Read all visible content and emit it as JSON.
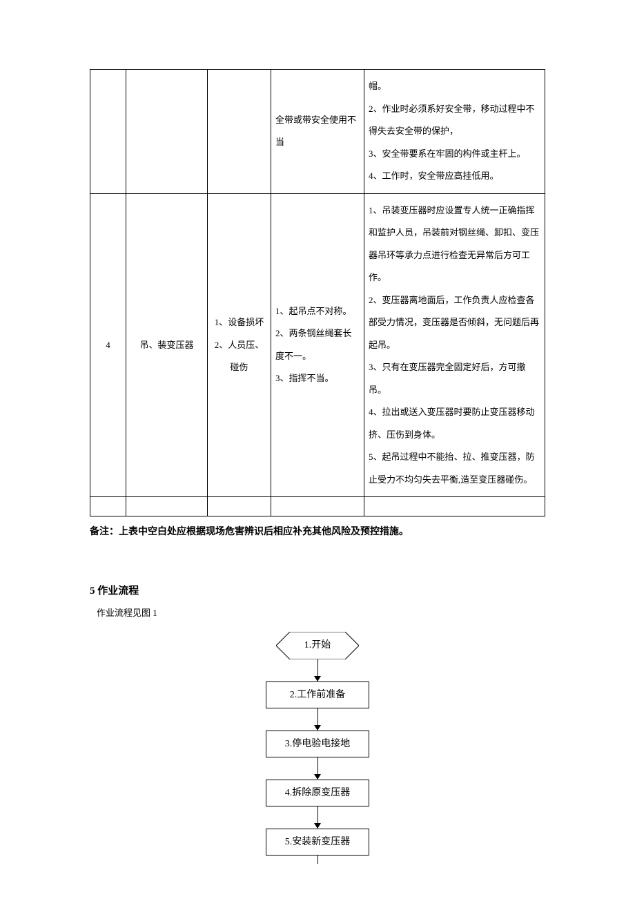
{
  "table": {
    "rows": [
      {
        "seq": "",
        "task": "",
        "risk": "",
        "cause": "全带或带安全使用不当",
        "measure": "帽。\n2、作业时必须系好安全带，移动过程中不得失去安全带的保护，\n3、安全带要系在牢固的构件或主杆上。\n4、工作时，安全带应高挂低用。"
      },
      {
        "seq": "4",
        "task": "吊、装变压器",
        "risk": "1、设备损坏\n2、人员压、碰伤",
        "cause": "1、起吊点不对称。\n2、两条钢丝绳套长度不一。\n3、指挥不当。",
        "measure": "1、吊装变压器时应设置专人统一正确指挥和监护人员，吊装前对钢丝绳、卸扣、变压器吊环等承力点进行检查无异常后方可工作。\n2、变压器离地面后，工作负责人应检查各部受力情况，变压器是否倾斜，无问题后再起吊。\n3、只有在变压器完全固定好后，方可撤吊。\n4、拉出或送入变压器时要防止变压器移动挤、压伤到身体。\n5、起吊过程中不能抬、拉、推变压器，防止受力不均匀失去平衡,造至变压器碰伤。"
      }
    ]
  },
  "note": "备注：上表中空白处应根据现场危害辨识后相应补充其他风险及预控措施。",
  "section": {
    "title": "5 作业流程",
    "subtitle": "作业流程见图 1"
  },
  "flowchart": {
    "steps": [
      "1.开始",
      "2.工作前准备",
      "3.停电验电接地",
      "4.拆除原变压器",
      "5.安装新变压器"
    ]
  }
}
